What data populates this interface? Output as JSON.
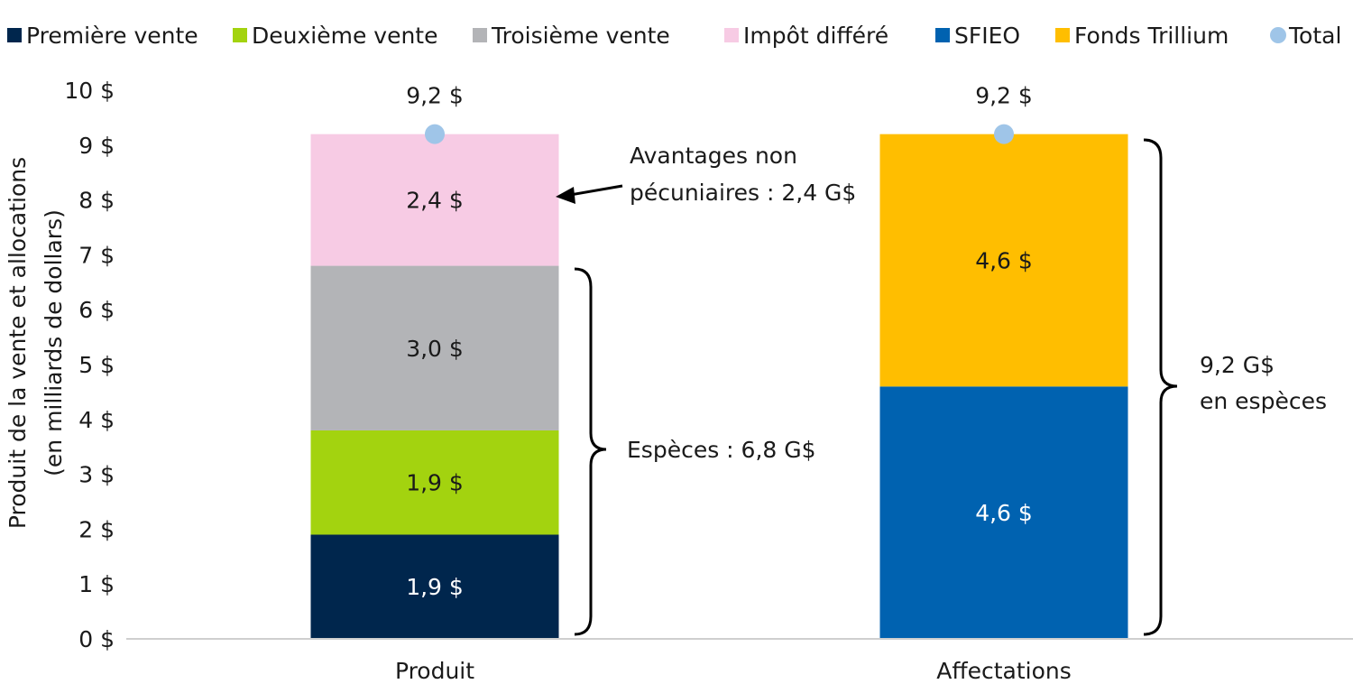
{
  "chart_data": {
    "type": "bar",
    "stacked": true,
    "categories": [
      "Produit",
      "Affectations"
    ],
    "ylabel_lines": [
      "Produit de la vente et allocations",
      "(en milliards de dollars)"
    ],
    "ylim": [
      0,
      10
    ],
    "yticks": [
      "0 $",
      "1 $",
      "2 $",
      "3 $",
      "4 $",
      "5 $",
      "6 $",
      "7 $",
      "8 $",
      "9 $",
      "10 $"
    ],
    "series": [
      {
        "name": "Première vente",
        "color": "#00264d",
        "values": [
          1.9,
          null
        ],
        "labels": [
          "1,9 $",
          ""
        ],
        "label_color": "#ffffff"
      },
      {
        "name": "Deuxième vente",
        "color": "#a3d30f",
        "values": [
          1.9,
          null
        ],
        "labels": [
          "1,9 $",
          ""
        ],
        "label_color": "#1a1a1a"
      },
      {
        "name": "Troisième vente",
        "color": "#b3b4b7",
        "values": [
          3.0,
          null
        ],
        "labels": [
          "3,0 $",
          ""
        ],
        "label_color": "#1a1a1a"
      },
      {
        "name": "Impôt différé",
        "color": "#f7cbe4",
        "values": [
          2.4,
          null
        ],
        "labels": [
          "2,4 $",
          ""
        ],
        "label_color": "#1a1a1a"
      },
      {
        "name": "SFIEO",
        "color": "#0062b0",
        "values": [
          null,
          4.6
        ],
        "labels": [
          "",
          "4,6 $"
        ],
        "label_color": "#ffffff"
      },
      {
        "name": "Fonds Trillium",
        "color": "#ffbe00",
        "values": [
          null,
          4.6
        ],
        "labels": [
          "",
          "4,6 $"
        ],
        "label_color": "#1a1a1a"
      }
    ],
    "total": {
      "name": "Total",
      "color": "#9fc5e8",
      "values": [
        9.2,
        9.2
      ],
      "labels": [
        "9,2 $",
        "9,2 $"
      ]
    },
    "annotations": {
      "non_cash_lines": [
        "Avantages non",
        "pécuniaires : 2,4 G$"
      ],
      "cash_left": "Espèces : 6,8 G$",
      "cash_right_lines": [
        "9,2 G$",
        "en espèces"
      ]
    },
    "legend_position": "top",
    "grid": false
  }
}
